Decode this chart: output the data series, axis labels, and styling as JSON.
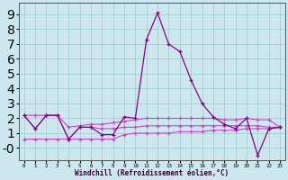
{
  "x": [
    0,
    1,
    2,
    3,
    4,
    5,
    6,
    7,
    8,
    9,
    10,
    11,
    12,
    13,
    14,
    15,
    16,
    17,
    18,
    19,
    20,
    21,
    22,
    23
  ],
  "line_main": [
    2.2,
    1.3,
    2.2,
    2.2,
    0.6,
    1.4,
    1.4,
    0.9,
    0.9,
    2.1,
    2.0,
    7.3,
    9.1,
    7.0,
    6.5,
    4.6,
    3.0,
    2.1,
    1.6,
    1.3,
    2.0,
    -0.5,
    1.3,
    1.4
  ],
  "line_b": [
    2.2,
    1.3,
    2.2,
    2.2,
    0.6,
    0.6,
    0.6,
    0.6,
    0.6,
    0.9,
    1.0,
    1.0,
    1.0,
    1.0,
    1.1,
    1.1,
    1.1,
    1.2,
    1.2,
    1.2,
    1.3,
    1.3,
    1.3,
    1.4
  ],
  "line_c": [
    2.2,
    2.2,
    2.2,
    2.2,
    1.4,
    1.5,
    1.6,
    1.6,
    1.7,
    1.8,
    1.9,
    2.0,
    2.0,
    2.0,
    2.0,
    2.0,
    2.0,
    2.0,
    1.9,
    1.9,
    2.0,
    1.9,
    1.9,
    1.4
  ],
  "line_d": [
    0.6,
    0.6,
    0.6,
    0.6,
    0.6,
    1.4,
    1.4,
    1.3,
    1.3,
    1.4,
    1.4,
    1.5,
    1.5,
    1.5,
    1.5,
    1.5,
    1.5,
    1.5,
    1.5,
    1.5,
    1.5,
    1.5,
    1.4,
    1.4
  ],
  "color_main": "#880088",
  "color_other": "#cc44cc",
  "bg_color": "#cce8ee",
  "grid_color": "#99cccc",
  "xlabel": "Windchill (Refroidissement éolien,°C)",
  "ylim": [
    -0.8,
    9.8
  ],
  "xlim": [
    -0.5,
    23.5
  ],
  "ytick_vals": [
    0,
    1,
    2,
    3,
    4,
    5,
    6,
    7,
    8,
    9
  ],
  "ytick_labels": [
    "-0",
    "1",
    "2",
    "3",
    "4",
    "5",
    "6",
    "7",
    "8",
    "9"
  ],
  "xticks": [
    0,
    1,
    2,
    3,
    4,
    5,
    6,
    7,
    8,
    9,
    10,
    11,
    12,
    13,
    14,
    15,
    16,
    17,
    18,
    19,
    20,
    21,
    22,
    23
  ]
}
